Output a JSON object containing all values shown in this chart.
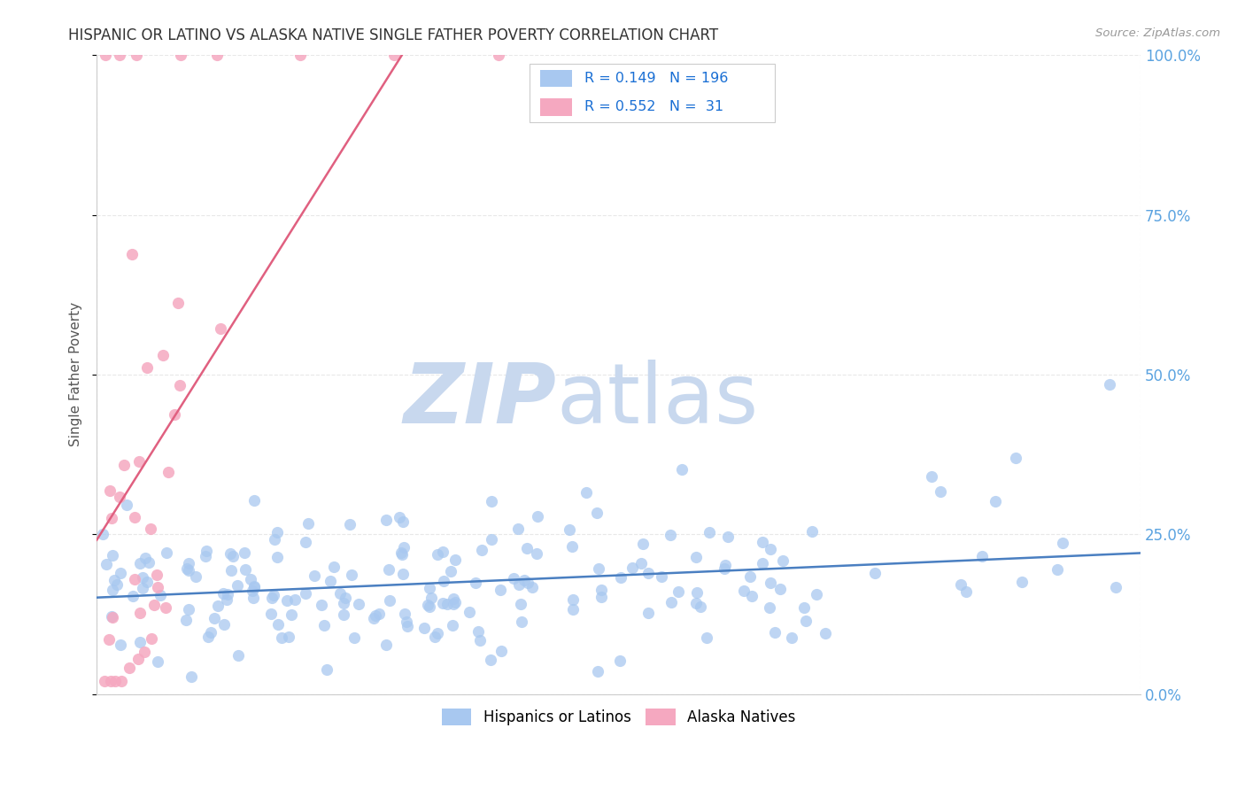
{
  "title": "HISPANIC OR LATINO VS ALASKA NATIVE SINGLE FATHER POVERTY CORRELATION CHART",
  "source": "Source: ZipAtlas.com",
  "ylabel": "Single Father Poverty",
  "blue_R": 0.149,
  "blue_N": 196,
  "pink_R": 0.552,
  "pink_N": 31,
  "blue_color": "#a8c8f0",
  "pink_color": "#f5a8c0",
  "blue_line_color": "#4a7fc1",
  "pink_line_color": "#e06080",
  "watermark_zip_color": "#c8d8ee",
  "watermark_atlas_color": "#c8d8ee",
  "background_color": "#ffffff",
  "grid_color": "#e8e8e8",
  "title_color": "#333333",
  "right_tick_color": "#5ba3e0",
  "legend_N_color": "#1a6fd4",
  "legend_border_color": "#cccccc",
  "axis_tick_color": "#888888",
  "ylabel_color": "#555555",
  "source_color": "#999999"
}
